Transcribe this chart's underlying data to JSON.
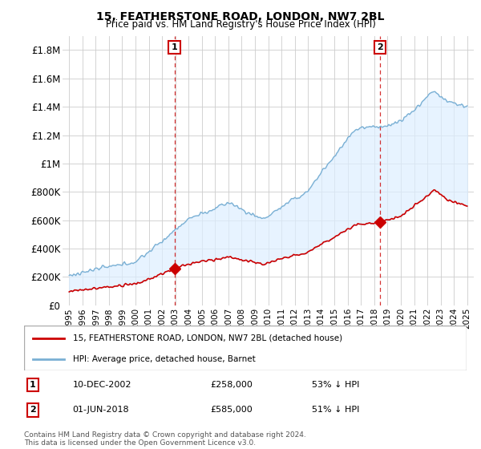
{
  "title": "15, FEATHERSTONE ROAD, LONDON, NW7 2BL",
  "subtitle": "Price paid vs. HM Land Registry's House Price Index (HPI)",
  "ylim": [
    0,
    1900000
  ],
  "yticks": [
    0,
    200000,
    400000,
    600000,
    800000,
    1000000,
    1200000,
    1400000,
    1600000,
    1800000
  ],
  "ytick_labels": [
    "£0",
    "£200K",
    "£400K",
    "£600K",
    "£800K",
    "£1M",
    "£1.2M",
    "£1.4M",
    "£1.6M",
    "£1.8M"
  ],
  "red_color": "#cc0000",
  "blue_color": "#7ab0d4",
  "blue_fill_color": "#ddeeff",
  "vline_color": "#cc0000",
  "grid_color": "#cccccc",
  "background_color": "#ffffff",
  "legend_label_red": "15, FEATHERSTONE ROAD, LONDON, NW7 2BL (detached house)",
  "legend_label_blue": "HPI: Average price, detached house, Barnet",
  "transaction1_label": "1",
  "transaction1_date": "10-DEC-2002",
  "transaction1_price": "£258,000",
  "transaction1_hpi": "53% ↓ HPI",
  "transaction1_year": 2002.94,
  "transaction1_value": 258000,
  "transaction2_label": "2",
  "transaction2_date": "01-JUN-2018",
  "transaction2_price": "£585,000",
  "transaction2_hpi": "51% ↓ HPI",
  "transaction2_year": 2018.42,
  "transaction2_value": 585000,
  "footer": "Contains HM Land Registry data © Crown copyright and database right 2024.\nThis data is licensed under the Open Government Licence v3.0.",
  "xmin": 1994.5,
  "xmax": 2025.5
}
